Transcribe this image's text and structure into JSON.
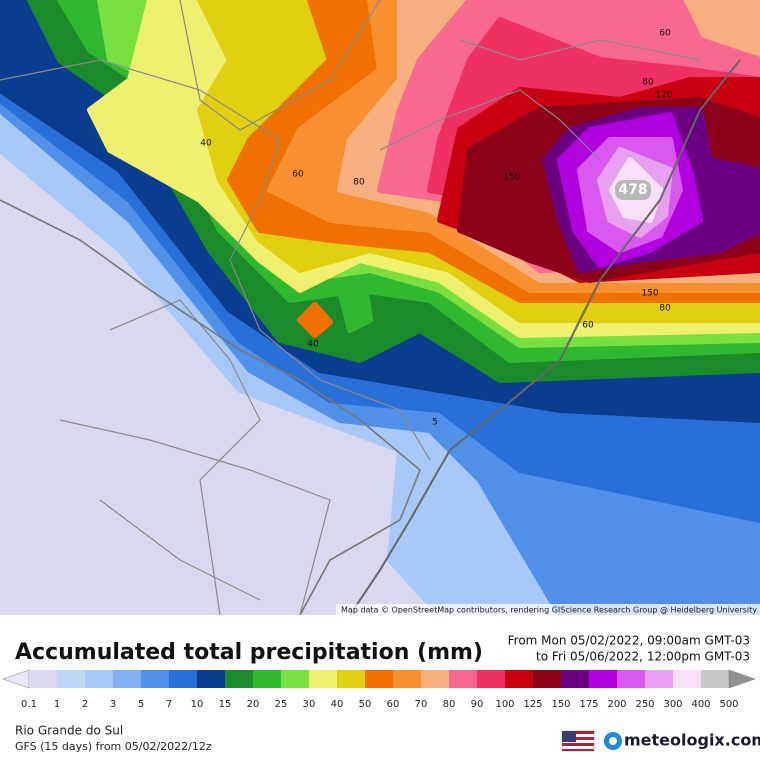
{
  "map": {
    "contour_labels": [
      "60",
      "80",
      "120",
      "40",
      "60",
      "80",
      "150",
      "478",
      "150",
      "80",
      "60",
      "40",
      "5"
    ],
    "attribution": "Map data © OpenStreetMap contributors, rendering GIScience Research Group @ Heidelberg University"
  },
  "header": {
    "title": "Accumulated total precipitation (mm)",
    "from": "From Mon 05/02/2022, 09:00am GMT-03",
    "to": "to Fri 05/06/2022, 12:00pm GMT-03"
  },
  "legend": {
    "levels": [
      0.1,
      1,
      2,
      3,
      5,
      7,
      10,
      15,
      20,
      25,
      30,
      40,
      50,
      60,
      70,
      80,
      90,
      100,
      125,
      150,
      175,
      200,
      250,
      300,
      400,
      500
    ],
    "colors": [
      "#d8d8f0",
      "#c0d8f8",
      "#a8c8f8",
      "#80b0f0",
      "#5090e8",
      "#2870d8",
      "#0a3c90",
      "#1a8a2a",
      "#30b830",
      "#78e040",
      "#f0f070",
      "#e0d010",
      "#f07000",
      "#f89030",
      "#f8b080",
      "#f86890",
      "#f03060",
      "#c80010",
      "#8c0018",
      "#6a0080",
      "#b000e0",
      "#d858f0",
      "#e8a0f0",
      "#f8e0f8",
      "#c8c8c8"
    ],
    "under_color": "#e8e8f8",
    "over_color": "#909090"
  },
  "footer": {
    "region": "Rio Grande do Sul",
    "model": "GFS (15 days) from 05/02/2022/12z",
    "brand": "meteologix.com"
  }
}
